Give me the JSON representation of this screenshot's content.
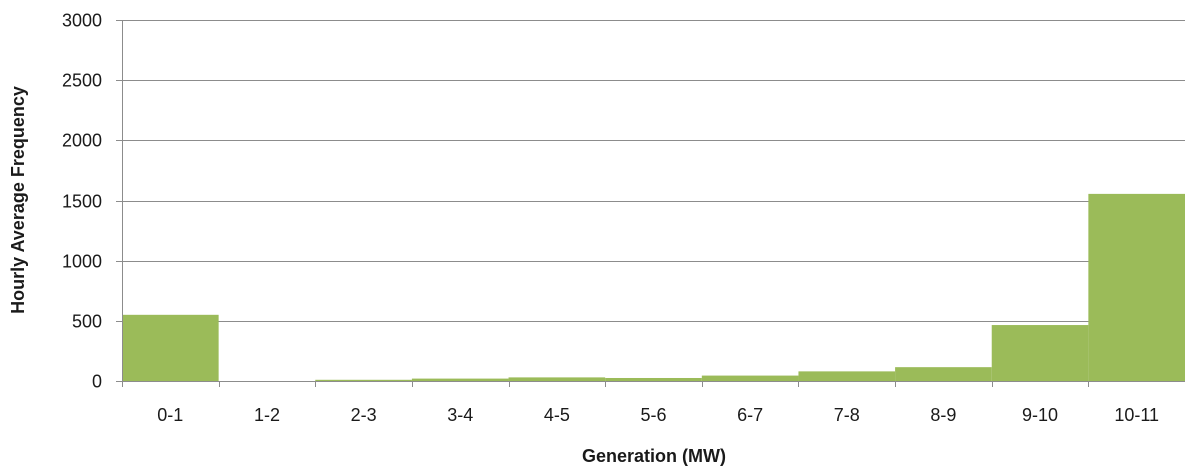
{
  "chart_data": {
    "type": "bar",
    "title": "",
    "xlabel": "Generation (MW)",
    "ylabel": "Hourly Average Frequency",
    "categories": [
      "0-1",
      "1-2",
      "2-3",
      "3-4",
      "4-5",
      "5-6",
      "6-7",
      "7-8",
      "8-9",
      "9-10",
      "10-11"
    ],
    "values": [
      550,
      0,
      10,
      20,
      30,
      25,
      45,
      80,
      115,
      465,
      1555
    ],
    "ylim": [
      0,
      3000
    ],
    "yticks": [
      0,
      500,
      1000,
      1500,
      2000,
      2500,
      3000
    ],
    "grid": true,
    "legend": "none",
    "colors": {
      "bar": "#9bbb59",
      "grid": "#8c8c8c",
      "axis": "#8c8c8c"
    }
  }
}
